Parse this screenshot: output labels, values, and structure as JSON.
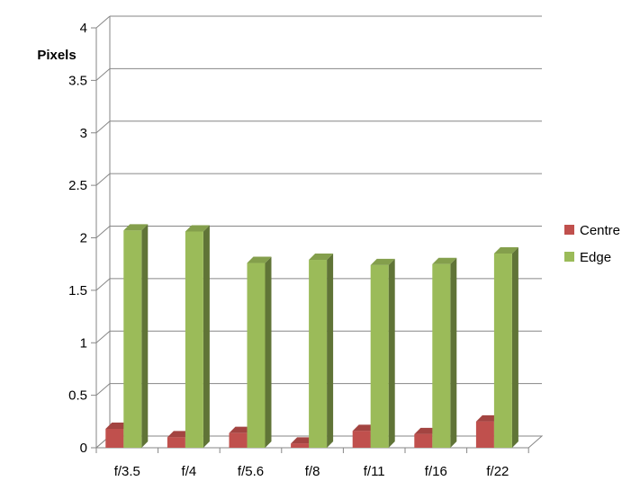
{
  "chart_data": {
    "type": "bar",
    "ylabel": "Pixels",
    "categories": [
      "f/3.5",
      "f/4",
      "f/5.6",
      "f/8",
      "f/11",
      "f/16",
      "f/22"
    ],
    "series": [
      {
        "name": "Centre",
        "values": [
          0.18,
          0.1,
          0.14,
          0.04,
          0.16,
          0.13,
          0.25
        ],
        "color": "#c0504d"
      },
      {
        "name": "Edge",
        "values": [
          2.07,
          2.06,
          1.76,
          1.79,
          1.74,
          1.75,
          1.85
        ],
        "color": "#9bbb59"
      }
    ],
    "ylim": [
      0,
      4
    ],
    "yticks": [
      "0",
      "0.5",
      "1",
      "1.5",
      "2",
      "2.5",
      "3",
      "3.5",
      "4"
    ],
    "grid": true,
    "legend_position": "right",
    "style": "3d-clustered-column"
  }
}
